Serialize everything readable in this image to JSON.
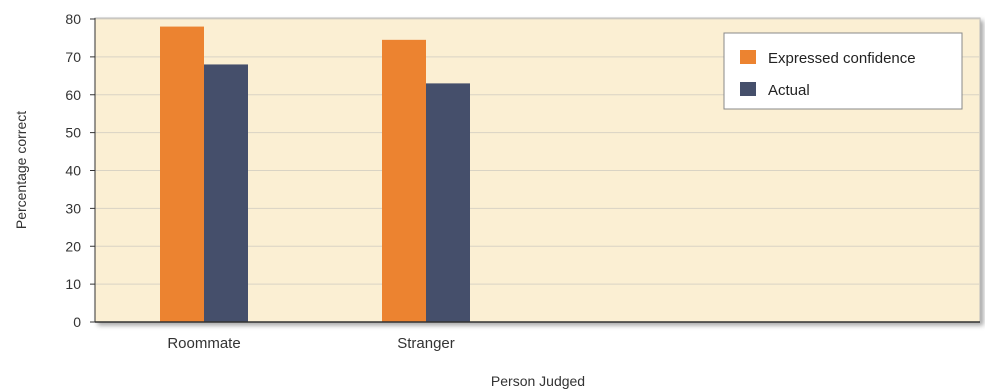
{
  "chart_data": {
    "type": "bar",
    "categories": [
      "Roommate",
      "Stranger"
    ],
    "series": [
      {
        "name": "Expressed confidence",
        "values": [
          78,
          74.5
        ],
        "color": "#ec8330"
      },
      {
        "name": "Actual",
        "values": [
          68,
          63
        ],
        "color": "#454f6b"
      }
    ],
    "xlabel": "Person Judged",
    "ylabel": "Percentage correct",
    "ylim": [
      0,
      80
    ],
    "yticks": [
      0,
      10,
      20,
      30,
      40,
      50,
      60,
      70,
      80
    ],
    "grid": true,
    "legend_position": "top-right",
    "plot_background": "#fbefd3",
    "grid_color": "#d9d3c4"
  }
}
